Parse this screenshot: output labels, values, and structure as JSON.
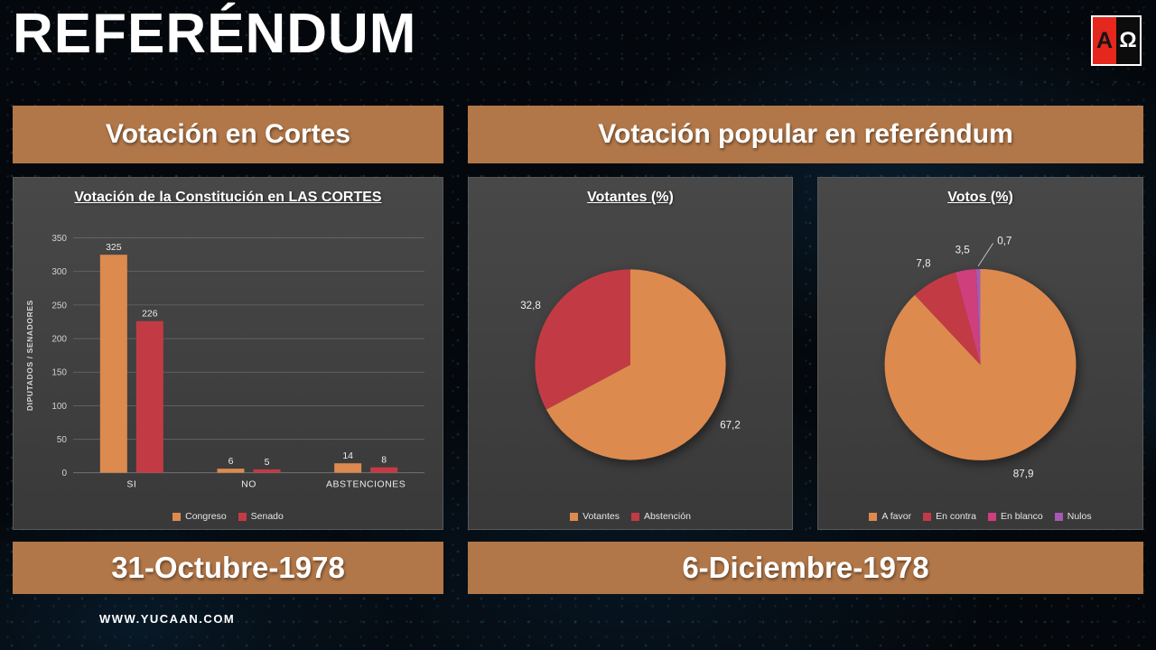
{
  "title": "REFERÉNDUM",
  "logo": {
    "alpha": "A",
    "omega": "Ω"
  },
  "sections": {
    "cortes": {
      "header": "Votación en Cortes",
      "date": "31-Octubre-1978"
    },
    "referendum": {
      "header": "Votación popular en referéndum",
      "date": "6-Diciembre-1978"
    }
  },
  "footer": {
    "website": "WWW.YUCAAN.COM"
  },
  "colors": {
    "band": "#b27748",
    "panel": "#3f3f3f",
    "orange": "#dd8a4f",
    "red": "#c23b44",
    "pink": "#ce3f7c",
    "purple": "#a45ab4"
  },
  "chart_data": [
    {
      "type": "bar",
      "title": "Votación de la Constitución en LAS CORTES",
      "ylabel": "DIPUTADOS / SENADORES",
      "categories": [
        "SI",
        "NO",
        "ABSTENCIONES"
      ],
      "series": [
        {
          "name": "Congreso",
          "color": "#dd8a4f",
          "values": [
            325,
            6,
            14
          ]
        },
        {
          "name": "Senado",
          "color": "#c23b44",
          "values": [
            226,
            5,
            8
          ]
        }
      ],
      "ylim": [
        0,
        350
      ],
      "ytick_step": 50,
      "grid": true,
      "legend_position": "bottom"
    },
    {
      "type": "pie",
      "title": "Votantes (%)",
      "labels": [
        "Votantes",
        "Abstención"
      ],
      "values": [
        67.2,
        32.8
      ],
      "value_labels": [
        "67,2",
        "32,8"
      ],
      "colors": [
        "#dd8a4f",
        "#c23b44"
      ],
      "legend_position": "bottom"
    },
    {
      "type": "pie",
      "title": "Votos (%)",
      "labels": [
        "A favor",
        "En contra",
        "En blanco",
        "Nulos"
      ],
      "values": [
        87.9,
        7.8,
        3.5,
        0.7
      ],
      "value_labels": [
        "87,9",
        "7,8",
        "3,5",
        "0,7"
      ],
      "colors": [
        "#dd8a4f",
        "#c23b44",
        "#ce3f7c",
        "#a45ab4"
      ],
      "legend_position": "bottom"
    }
  ]
}
